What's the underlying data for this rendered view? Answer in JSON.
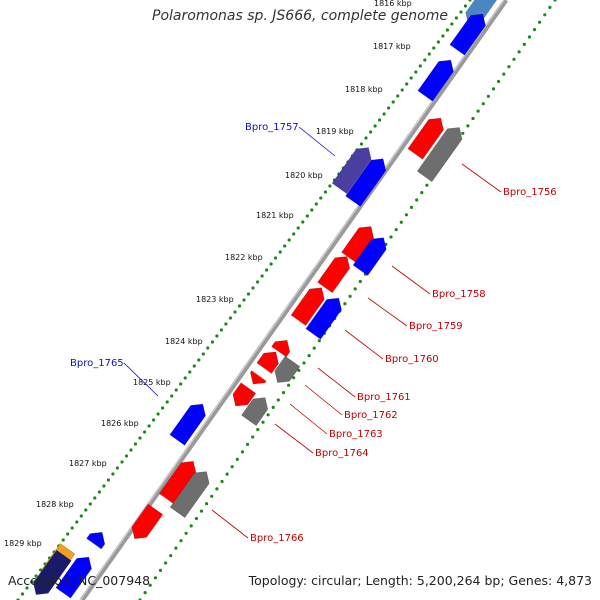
{
  "title": "Polaromonas sp. JS666, complete genome",
  "footer": {
    "accession": "Accession: NC_007948",
    "summary": "Topology: circular; Length: 5,200,264 bp; Genes: 4,873"
  },
  "colors": {
    "forward": "#ff0000",
    "reverse": "#0000ff",
    "gray": "#6e6e6e",
    "purple": "#4a3fa0",
    "steel": "#4a87c0",
    "orange": "#f0a020",
    "gc_dots": "#1a8a1a",
    "backbone": "#9a9a9a",
    "label_red": "#c00000",
    "label_blue": "#1010c0"
  },
  "ticks": [
    "1816 kbp",
    "1817 kbp",
    "1818 kbp",
    "1819 kbp",
    "1820 kbp",
    "1821 kbp",
    "1822 kbp",
    "1823 kbp",
    "1824 kbp",
    "1825 kbp",
    "1826 kbp",
    "1827 kbp",
    "1828 kbp",
    "1829 kbp"
  ],
  "gene_labels": [
    {
      "text": "Bpro_1757",
      "color": "blue"
    },
    {
      "text": "Bpro_1756",
      "color": "red"
    },
    {
      "text": "Bpro_1758",
      "color": "red"
    },
    {
      "text": "Bpro_1759",
      "color": "red"
    },
    {
      "text": "Bpro_1760",
      "color": "red"
    },
    {
      "text": "Bpro_1765",
      "color": "blue"
    },
    {
      "text": "Bpro_1761",
      "color": "red"
    },
    {
      "text": "Bpro_1762",
      "color": "red"
    },
    {
      "text": "Bpro_1763",
      "color": "red"
    },
    {
      "text": "Bpro_1764",
      "color": "red"
    },
    {
      "text": "Bpro_1766",
      "color": "red"
    }
  ]
}
